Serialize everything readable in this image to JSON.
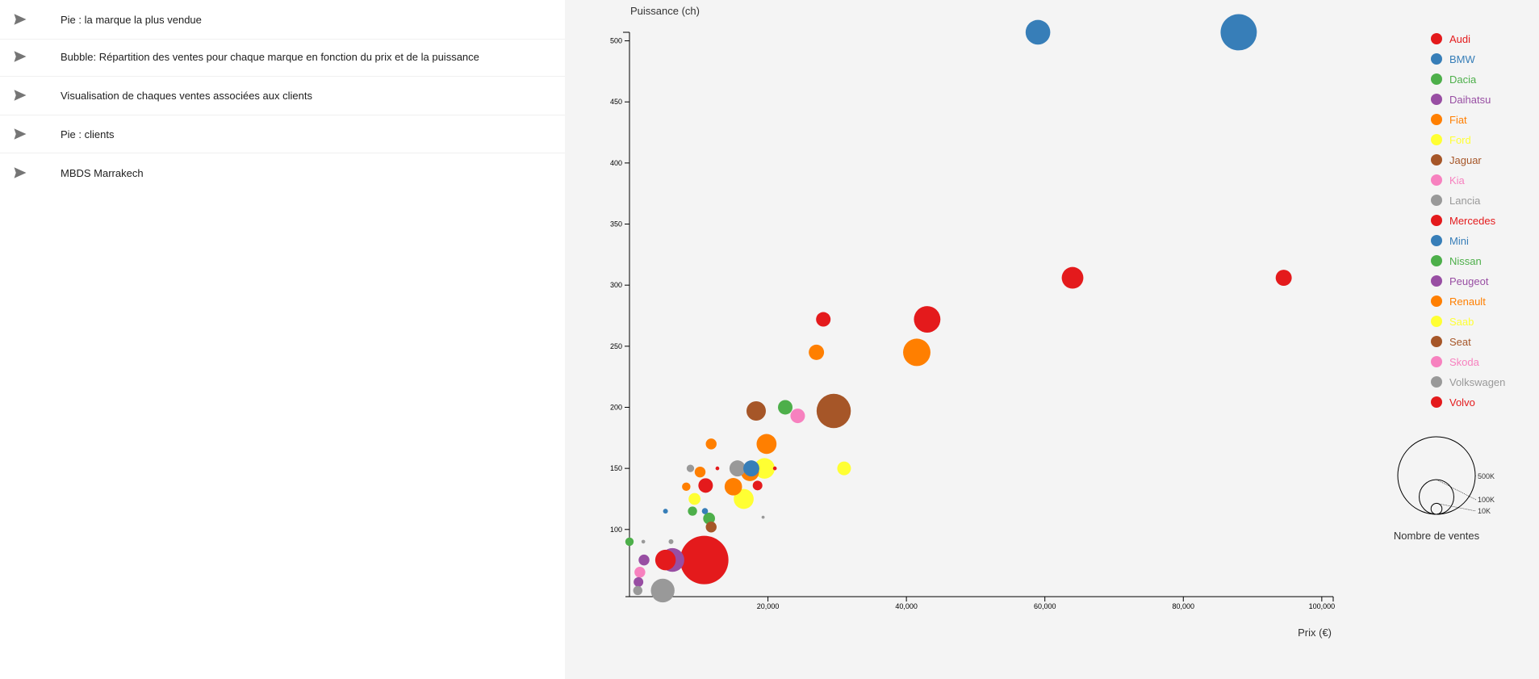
{
  "sidebar": {
    "items": [
      {
        "label": "Pie : la marque la plus vendue"
      },
      {
        "label": "Bubble: Répartition des ventes pour chaque marque en fonction du prix et de la puissance"
      },
      {
        "label": "Visualisation de chaques ventes associées aux clients"
      },
      {
        "label": "Pie : clients"
      },
      {
        "label": "MBDS Marrakech"
      }
    ]
  },
  "chart_data": {
    "type": "scatter",
    "title": "",
    "xlabel": "Prix (€)",
    "ylabel": "Puissance (ch)",
    "xlim": [
      0,
      102000
    ],
    "ylim": [
      45,
      505
    ],
    "xticks": [
      20000,
      40000,
      60000,
      80000,
      100000
    ],
    "xtick_labels": [
      "20,000",
      "40,000",
      "60,000",
      "80,000",
      "100,000"
    ],
    "yticks": [
      100,
      150,
      200,
      250,
      300,
      350,
      400,
      450,
      500
    ],
    "yaxis_grid": false,
    "legend_position": "right",
    "brands": [
      {
        "name": "Audi",
        "color": "#e41a1c"
      },
      {
        "name": "BMW",
        "color": "#377eb8"
      },
      {
        "name": "Dacia",
        "color": "#4daf4a"
      },
      {
        "name": "Daihatsu",
        "color": "#984ea3"
      },
      {
        "name": "Fiat",
        "color": "#ff7f00"
      },
      {
        "name": "Ford",
        "color": "#ffff33"
      },
      {
        "name": "Jaguar",
        "color": "#a65628"
      },
      {
        "name": "Kia",
        "color": "#f781bf"
      },
      {
        "name": "Lancia",
        "color": "#999999"
      },
      {
        "name": "Mercedes",
        "color": "#e41a1c"
      },
      {
        "name": "Mini",
        "color": "#377eb8"
      },
      {
        "name": "Nissan",
        "color": "#4daf4a"
      },
      {
        "name": "Peugeot",
        "color": "#984ea3"
      },
      {
        "name": "Renault",
        "color": "#ff7f00"
      },
      {
        "name": "Saab",
        "color": "#ffff33"
      },
      {
        "name": "Seat",
        "color": "#a65628"
      },
      {
        "name": "Skoda",
        "color": "#f781bf"
      },
      {
        "name": "Volkswagen",
        "color": "#999999"
      },
      {
        "name": "Volvo",
        "color": "#e41a1c"
      }
    ],
    "size_legend": {
      "title": "Nombre de ventes",
      "entries": [
        {
          "label": "500K",
          "value": 500000
        },
        {
          "label": "100K",
          "value": 100000
        },
        {
          "label": "10K",
          "value": 10000
        }
      ]
    },
    "points": [
      {
        "x": 59000,
        "y": 507,
        "sales": 130000,
        "color": "#377eb8"
      },
      {
        "x": 88000,
        "y": 507,
        "sales": 280000,
        "color": "#377eb8"
      },
      {
        "x": 64000,
        "y": 306,
        "sales": 100000,
        "color": "#e41a1c"
      },
      {
        "x": 94500,
        "y": 306,
        "sales": 55000,
        "color": "#e41a1c"
      },
      {
        "x": 28000,
        "y": 272,
        "sales": 45000,
        "color": "#e41a1c"
      },
      {
        "x": 43000,
        "y": 272,
        "sales": 150000,
        "color": "#e41a1c"
      },
      {
        "x": 27000,
        "y": 245,
        "sales": 50000,
        "color": "#ff7f00"
      },
      {
        "x": 41500,
        "y": 245,
        "sales": 160000,
        "color": "#ff7f00"
      },
      {
        "x": 18300,
        "y": 197,
        "sales": 80000,
        "color": "#a65628"
      },
      {
        "x": 29500,
        "y": 197,
        "sales": 250000,
        "color": "#a65628"
      },
      {
        "x": 22500,
        "y": 200,
        "sales": 45000,
        "color": "#4daf4a"
      },
      {
        "x": 24300,
        "y": 193,
        "sales": 45000,
        "color": "#f781bf"
      },
      {
        "x": 11800,
        "y": 170,
        "sales": 25000,
        "color": "#ff7f00"
      },
      {
        "x": 19800,
        "y": 170,
        "sales": 85000,
        "color": "#ff7f00"
      },
      {
        "x": 31000,
        "y": 150,
        "sales": 40000,
        "color": "#ffff33"
      },
      {
        "x": 8800,
        "y": 150,
        "sales": 12000,
        "color": "#999999"
      },
      {
        "x": 10200,
        "y": 147,
        "sales": 25000,
        "color": "#ff7f00"
      },
      {
        "x": 12700,
        "y": 150,
        "sales": 3000,
        "color": "#e41a1c"
      },
      {
        "x": 15600,
        "y": 150,
        "sales": 55000,
        "color": "#999999"
      },
      {
        "x": 17400,
        "y": 147,
        "sales": 70000,
        "color": "#ff7f00"
      },
      {
        "x": 17600,
        "y": 150,
        "sales": 55000,
        "color": "#377eb8"
      },
      {
        "x": 19500,
        "y": 150,
        "sales": 90000,
        "color": "#ffff33"
      },
      {
        "x": 21000,
        "y": 150,
        "sales": 3000,
        "color": "#e41a1c"
      },
      {
        "x": 11000,
        "y": 136,
        "sales": 45000,
        "color": "#e41a1c"
      },
      {
        "x": 15000,
        "y": 135,
        "sales": 65000,
        "color": "#ff7f00"
      },
      {
        "x": 18500,
        "y": 136,
        "sales": 20000,
        "color": "#e41a1c"
      },
      {
        "x": 8200,
        "y": 135,
        "sales": 15000,
        "color": "#ff7f00"
      },
      {
        "x": 9400,
        "y": 125,
        "sales": 30000,
        "color": "#ffff33"
      },
      {
        "x": 16500,
        "y": 125,
        "sales": 85000,
        "color": "#ffff33"
      },
      {
        "x": 5200,
        "y": 115,
        "sales": 5000,
        "color": "#377eb8"
      },
      {
        "x": 9100,
        "y": 115,
        "sales": 18000,
        "color": "#4daf4a"
      },
      {
        "x": 10900,
        "y": 115,
        "sales": 8000,
        "color": "#377eb8"
      },
      {
        "x": 11500,
        "y": 109,
        "sales": 30000,
        "color": "#4daf4a"
      },
      {
        "x": 19300,
        "y": 110,
        "sales": 2000,
        "color": "#999999"
      },
      {
        "x": 11800,
        "y": 102,
        "sales": 25000,
        "color": "#a65628"
      },
      {
        "x": 0,
        "y": 90,
        "sales": 15000,
        "color": "#4daf4a"
      },
      {
        "x": 2000,
        "y": 90,
        "sales": 3000,
        "color": "#999999"
      },
      {
        "x": 6000,
        "y": 90,
        "sales": 5000,
        "color": "#999999"
      },
      {
        "x": 2100,
        "y": 75,
        "sales": 25000,
        "color": "#984ea3"
      },
      {
        "x": 5200,
        "y": 75,
        "sales": 90000,
        "color": "#e41a1c"
      },
      {
        "x": 6200,
        "y": 75,
        "sales": 120000,
        "color": "#984ea3"
      },
      {
        "x": 10800,
        "y": 75,
        "sales": 500000,
        "color": "#e41a1c"
      },
      {
        "x": 1500,
        "y": 65,
        "sales": 25000,
        "color": "#f781bf"
      },
      {
        "x": 1300,
        "y": 57,
        "sales": 20000,
        "color": "#984ea3"
      },
      {
        "x": 1200,
        "y": 50,
        "sales": 18000,
        "color": "#999999"
      },
      {
        "x": 4800,
        "y": 50,
        "sales": 120000,
        "color": "#999999"
      }
    ]
  }
}
